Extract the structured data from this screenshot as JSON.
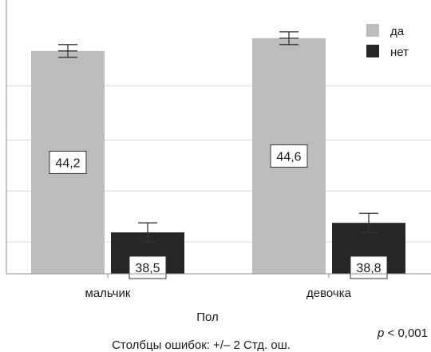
{
  "chart_data": {
    "type": "bar",
    "categories": [
      "мальчик",
      "девочка"
    ],
    "series": [
      {
        "name": "да",
        "color": "#bdbdbd",
        "values": [
          44.2,
          44.6
        ],
        "error": [
          0.2,
          0.2
        ],
        "labels": [
          "44,2",
          "44,6"
        ]
      },
      {
        "name": "нет",
        "color": "#262626",
        "values": [
          38.5,
          38.8
        ],
        "error": [
          0.3,
          0.3
        ],
        "labels": [
          "38,5",
          "38,8"
        ]
      }
    ],
    "title": "",
    "xlabel": "Пол",
    "ylabel": "",
    "ylim": [
      37.2,
      45.8
    ],
    "y_gridlines": [
      38.2,
      39.8,
      41.4,
      43.1
    ],
    "y_tick_labels_shown": false,
    "legend_position": "top-right",
    "error_bar_note": "Столбцы ошибок: +/– 2 Стд. ош.",
    "p_value_prefix": "p",
    "p_value_rest": " < 0,001"
  }
}
